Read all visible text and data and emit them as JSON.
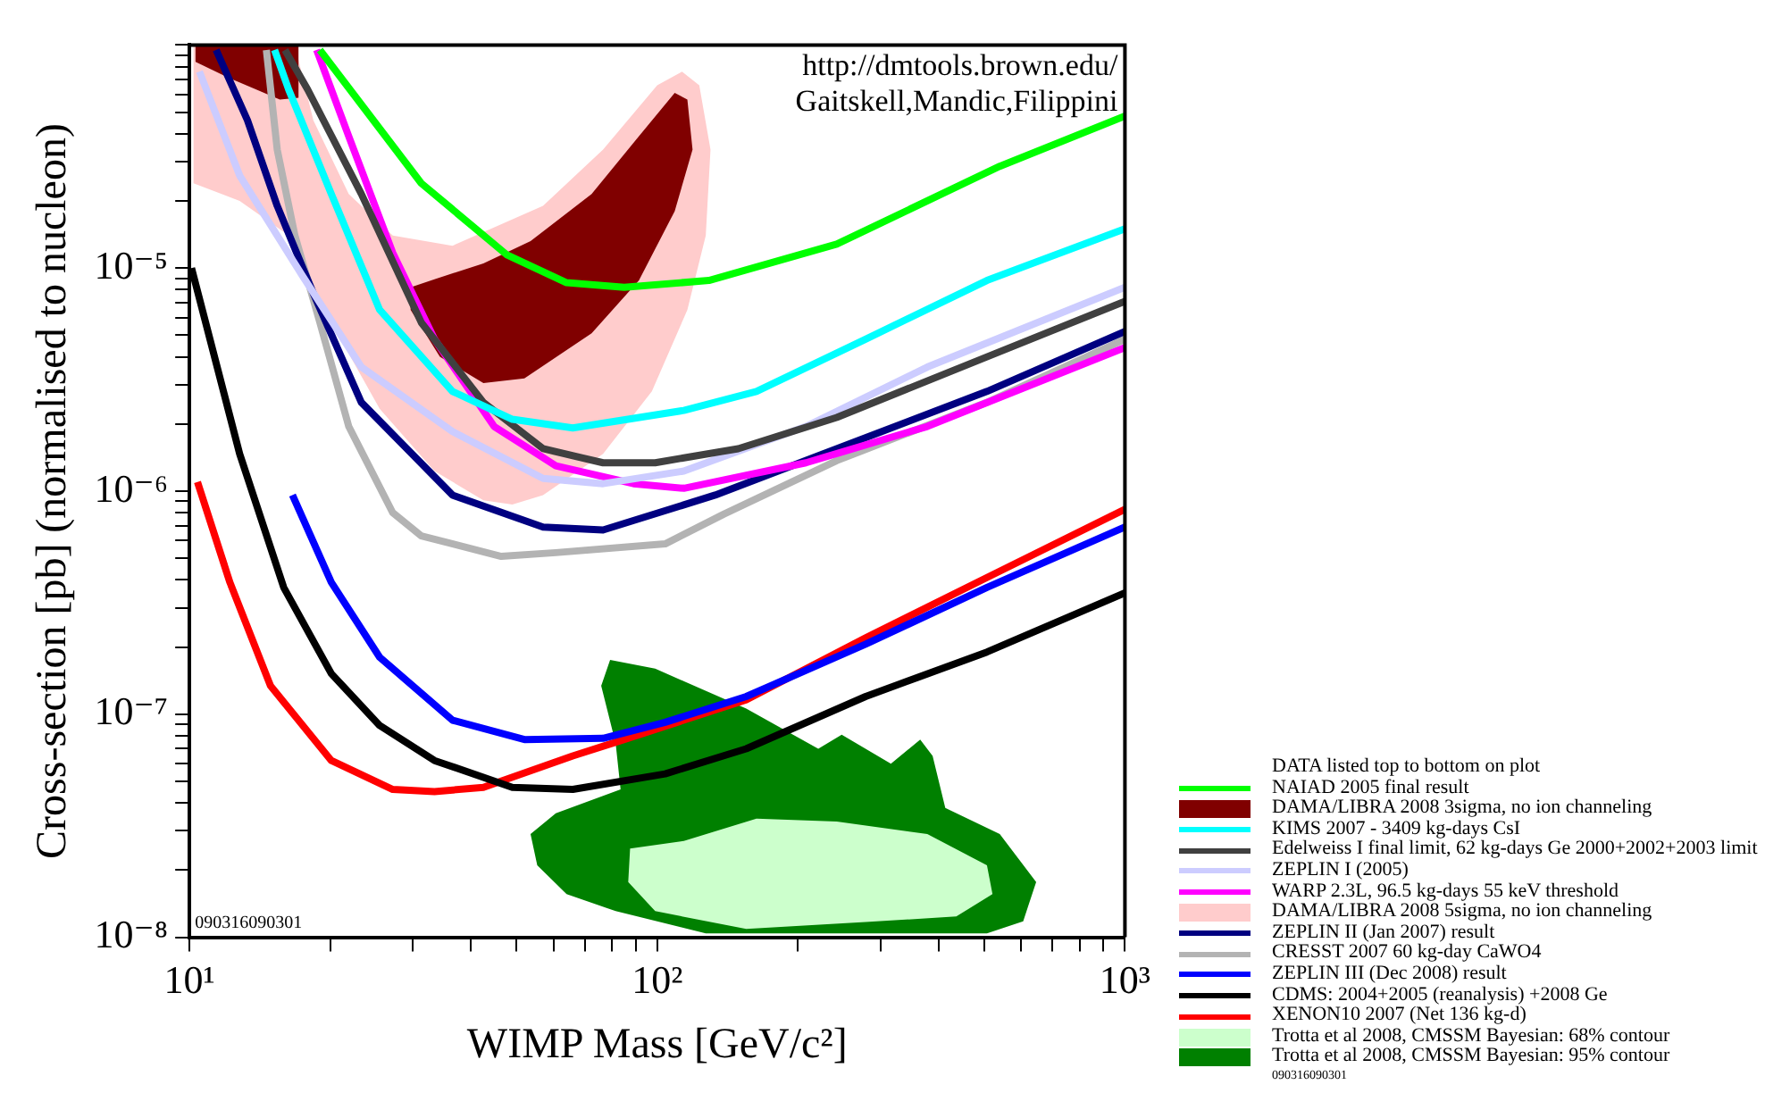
{
  "chart_data": {
    "type": "line",
    "xlabel": "WIMP Mass [GeV/c²]",
    "ylabel": "Cross-section [pb] (normalised to nucleon)",
    "legend_title": "DATA listed top to bottom on plot",
    "log": "xy",
    "grid": false,
    "legend": "bottom right",
    "marker": "none",
    "line_style": "solid",
    "xlim": [
      10,
      1000
    ],
    "ylim": [
      1e-08,
      0.0001
    ],
    "xticks": [
      {
        "value": 10,
        "label": "10¹"
      },
      {
        "value": 20,
        "label": null
      },
      {
        "value": 30,
        "label": null
      },
      {
        "value": 40,
        "label": null
      },
      {
        "value": 50,
        "label": null
      },
      {
        "value": 60,
        "label": null
      },
      {
        "value": 70,
        "label": null
      },
      {
        "value": 80,
        "label": null
      },
      {
        "value": 90,
        "label": null
      },
      {
        "value": 100,
        "label": "10²"
      },
      {
        "value": 200,
        "label": null
      },
      {
        "value": 300,
        "label": null
      },
      {
        "value": 400,
        "label": null
      },
      {
        "value": 500,
        "label": null
      },
      {
        "value": 600,
        "label": null
      },
      {
        "value": 700,
        "label": null
      },
      {
        "value": 800,
        "label": null
      },
      {
        "value": 900,
        "label": null
      },
      {
        "value": 1000,
        "label": "10³"
      }
    ],
    "yticks": [
      {
        "value": 1e-08,
        "label": "10⁻⁸"
      },
      {
        "value": 2e-08,
        "label": null
      },
      {
        "value": 3e-08,
        "label": null
      },
      {
        "value": 4e-08,
        "label": null
      },
      {
        "value": 5e-08,
        "label": null
      },
      {
        "value": 6e-08,
        "label": null
      },
      {
        "value": 7e-08,
        "label": null
      },
      {
        "value": 8e-08,
        "label": null
      },
      {
        "value": 9e-08,
        "label": null
      },
      {
        "value": 1e-07,
        "label": "10⁻⁷"
      },
      {
        "value": 2e-07,
        "label": null
      },
      {
        "value": 3e-07,
        "label": null
      },
      {
        "value": 4e-07,
        "label": null
      },
      {
        "value": 5e-07,
        "label": null
      },
      {
        "value": 6e-07,
        "label": null
      },
      {
        "value": 7e-07,
        "label": null
      },
      {
        "value": 8e-07,
        "label": null
      },
      {
        "value": 9e-07,
        "label": null
      },
      {
        "value": 1e-06,
        "label": "10⁻⁶"
      },
      {
        "value": 2e-06,
        "label": null
      },
      {
        "value": 3e-06,
        "label": null
      },
      {
        "value": 4e-06,
        "label": null
      },
      {
        "value": 5e-06,
        "label": null
      },
      {
        "value": 6e-06,
        "label": null
      },
      {
        "value": 7e-06,
        "label": null
      },
      {
        "value": 8e-06,
        "label": null
      },
      {
        "value": 9e-06,
        "label": null
      },
      {
        "value": 1e-05,
        "label": "10⁻⁵"
      },
      {
        "value": 2e-05,
        "label": null
      },
      {
        "value": 3e-05,
        "label": null
      },
      {
        "value": 4e-05,
        "label": null
      },
      {
        "value": 5e-05,
        "label": null
      },
      {
        "value": 6e-05,
        "label": null
      },
      {
        "value": 7e-05,
        "label": null
      },
      {
        "value": 8e-05,
        "label": null
      },
      {
        "value": 9e-05,
        "label": null
      },
      {
        "value": 0.0001,
        "label": null
      }
    ],
    "annotations": [
      "http://dmtools.brown.edu/",
      "Gaitskell,Mandic,Filippini",
      "090316090301",
      "090316090301"
    ],
    "series": [
      {
        "name": "NAIAD 2005 final result",
        "color": "#00ff00",
        "x": [
          19,
          31.3,
          47.6,
          64,
          85,
          129,
          242,
          540,
          1000
        ],
        "values": [
          9.5e-05,
          2.4e-05,
          1.15e-05,
          8.6e-06,
          8.2e-06,
          8.8e-06,
          1.28e-05,
          2.86e-05,
          4.8e-05
        ]
      },
      {
        "name": "DAMA/LIBRA 2008 3sigma, no ion channeling",
        "color": "#800000",
        "type": "area",
        "x": [
          29.7,
          33.4,
          42.5,
          53.6,
          72.4,
          91.4,
          109,
          116,
          119,
          109,
          91.4,
          72.4,
          52,
          42.5,
          34.3,
          29.7,
          29.7
        ],
        "values": [
          8.2e-06,
          8.9e-06,
          1.05e-05,
          1.32e-05,
          2.15e-05,
          3.9e-05,
          6.1e-05,
          5.7e-05,
          3.4e-05,
          1.8e-05,
          8.8e-06,
          5.1e-06,
          3.2e-06,
          3.05e-06,
          4e-06,
          6.5e-06,
          8.2e-06
        ]
      },
      {
        "color": "#800000",
        "type": "area",
        "x": [
          10.3,
          10.3,
          12,
          15.6,
          17.1,
          17.1,
          10.3
        ],
        "values": [
          0.0001,
          8.4e-05,
          7.2e-05,
          5.7e-05,
          5.8e-05,
          0.0001,
          0.0001
        ]
      },
      {
        "name": "KIMS 2007 - 3409 kg-days CsI",
        "color": "#00ffff",
        "x": [
          15.2,
          16.3,
          20.1,
          25.5,
          36.5,
          49,
          66,
          114,
          163,
          279,
          507,
          1000
        ],
        "values": [
          9.5e-05,
          6.3e-05,
          2.15e-05,
          6.5e-06,
          2.8e-06,
          2.1e-06,
          1.92e-06,
          2.3e-06,
          2.8e-06,
          4.8e-06,
          8.8e-06,
          1.5e-05
        ]
      },
      {
        "name": "Edelweiss I final limit, 62 kg-days Ge 2000+2002+2003 limit",
        "color": "#404040",
        "x": [
          16,
          17.9,
          23.3,
          31.3,
          42.5,
          57,
          76.6,
          99,
          149,
          242,
          507,
          1000
        ],
        "values": [
          9.5e-05,
          6.3e-05,
          2.15e-05,
          5.7e-06,
          2.5e-06,
          1.55e-06,
          1.34e-06,
          1.34e-06,
          1.55e-06,
          2.14e-06,
          4e-06,
          7.1e-06
        ]
      },
      {
        "name": "ZEPLIN I (2005)",
        "color": "#ccccff",
        "x": [
          10.5,
          12.8,
          17.4,
          23.3,
          36.5,
          57,
          76.6,
          114,
          208,
          378,
          1000
        ],
        "values": [
          7.6e-05,
          2.6e-05,
          9.3e-06,
          3.6e-06,
          1.85e-06,
          1.14e-06,
          1.08e-06,
          1.23e-06,
          1.95e-06,
          3.6e-06,
          8.2e-06
        ]
      },
      {
        "name": "WARP 2.3L, 96.5 kg-days 55 keV threshold",
        "color": "#ff00ff",
        "x": [
          18.7,
          21.9,
          27.2,
          33.4,
          44.8,
          60.7,
          89,
          114,
          208,
          378,
          1000
        ],
        "values": [
          9.5e-05,
          3.9e-05,
          1.17e-05,
          4.8e-06,
          1.95e-06,
          1.3e-06,
          1.08e-06,
          1.03e-06,
          1.34e-06,
          1.95e-06,
          4.4e-06
        ]
      },
      {
        "name": "DAMA/LIBRA 2008 5sigma, no ion channeling",
        "color": "#ffcccc",
        "type": "area",
        "x": [
          10.2,
          10.2,
          12.8,
          16.3,
          20.1,
          25.5,
          33.4,
          42.5,
          49,
          57,
          76.6,
          97.4,
          116,
          127,
          130,
          123,
          113,
          100,
          76.6,
          57,
          36.5,
          27.2,
          21.9,
          18.4,
          16.8,
          10.2
        ],
        "values": [
          0.0001,
          2.4e-05,
          2e-05,
          1.4e-05,
          5.7e-06,
          2.34e-06,
          1.23e-06,
          9.1e-07,
          8.7e-07,
          9.6e-07,
          1.47e-06,
          2.8e-06,
          6.5e-06,
          1.4e-05,
          3.4e-05,
          6.6e-05,
          7.6e-05,
          6.6e-05,
          3.4e-05,
          1.9e-05,
          1.26e-05,
          1.4e-05,
          2.15e-05,
          4.6e-05,
          0.0001,
          0.0001
        ]
      },
      {
        "name": "ZEPLIN II (Jan 2007) result",
        "color": "#000080",
        "x": [
          11.4,
          13.3,
          15.4,
          18.4,
          23.3,
          36.5,
          57,
          76.6,
          133,
          242,
          507,
          1000
        ],
        "values": [
          9.5e-05,
          4.6e-05,
          1.9e-05,
          7.7e-06,
          2.5e-06,
          9.6e-07,
          6.9e-07,
          6.7e-07,
          9.6e-07,
          1.55e-06,
          2.8e-06,
          5.2e-06
        ]
      },
      {
        "name": "CRESST 2007 60 kg-day CaWO4",
        "color": "#b3b3b3",
        "x": [
          14.6,
          15.4,
          16.8,
          19,
          21.9,
          27.2,
          31.3,
          46.4,
          60.7,
          104,
          139,
          242,
          507,
          1000
        ],
        "values": [
          9.5e-05,
          3.4e-05,
          1.4e-05,
          5.7e-06,
          1.95e-06,
          8e-07,
          6.3e-07,
          5.1e-07,
          5.3e-07,
          5.8e-07,
          7.9e-07,
          1.37e-06,
          2.5e-06,
          4.8e-06
        ]
      },
      {
        "name": "ZEPLIN III (Dec 2008) result",
        "color": "#0000ff",
        "x": [
          16.6,
          20.1,
          25.5,
          36.5,
          52,
          76.6,
          104,
          155,
          279,
          507,
          1000
        ],
        "values": [
          9.6e-07,
          3.9e-07,
          1.8e-07,
          9.4e-08,
          7.7e-08,
          7.8e-08,
          9.2e-08,
          1.2e-07,
          2.06e-07,
          3.7e-07,
          6.9e-07
        ]
      },
      {
        "name": "CDMS: 2004+2005 (reanalysis) +2008 Ge",
        "color": "#000000",
        "x": [
          10.1,
          12.8,
          14.9,
          15.9,
          20.1,
          25.5,
          33.4,
          49,
          66,
          104,
          155,
          279,
          507,
          1000
        ],
        "values": [
          1e-05,
          1.47e-06,
          5.6e-07,
          3.7e-07,
          1.52e-07,
          8.9e-08,
          6.2e-08,
          4.7e-08,
          4.6e-08,
          5.4e-08,
          7e-08,
          1.2e-07,
          1.9e-07,
          3.5e-07
        ]
      },
      {
        "name": "XENON10 2007 (Net 136 kg-d)",
        "color": "#ff0000",
        "x": [
          10.4,
          12.2,
          14.9,
          20.1,
          27.2,
          33.4,
          42.5,
          66,
          85,
          155,
          279,
          507,
          1000
        ],
        "values": [
          1.1e-06,
          3.9e-07,
          1.34e-07,
          6.2e-08,
          4.6e-08,
          4.5e-08,
          4.7e-08,
          6.5e-08,
          7.7e-08,
          1.16e-07,
          2.2e-07,
          4.1e-07,
          8.3e-07
        ]
      },
      {
        "name": "Trotta et al 2008, CMSSM Bayesian: 68% contour",
        "color": "#ccffcc",
        "type": "area",
        "x": [
          87.5,
          114,
          163,
          242,
          378,
          507,
          521,
          436,
          279,
          155,
          99,
          86.7,
          87.5
        ],
        "values": [
          2.5e-08,
          2.7e-08,
          3.4e-08,
          3.3e-08,
          2.9e-08,
          2.1e-08,
          1.56e-08,
          1.24e-08,
          1.17e-08,
          1.09e-08,
          1.31e-08,
          1.77e-08,
          2.5e-08
        ]
      },
      {
        "name": "Trotta et al 2008, CMSSM Bayesian: 95% contour",
        "color": "#008000",
        "type": "area",
        "x": [
          75.9,
          79.3,
          99,
          155,
          221,
          248,
          316,
          365,
          388,
          413,
          540,
          646,
          606,
          507,
          127,
          81.5,
          64,
          55.4,
          53.6,
          60.7,
          83.5,
          81.5,
          75.9
        ],
        "values": [
          1.34e-07,
          1.75e-07,
          1.6e-07,
          1.06e-07,
          7e-08,
          8.1e-08,
          6e-08,
          7.7e-08,
          6.5e-08,
          3.8e-08,
          2.9e-08,
          1.77e-08,
          1.18e-08,
          1.04e-08,
          1.04e-08,
          1.31e-08,
          1.56e-08,
          2.1e-08,
          2.9e-08,
          3.6e-08,
          4.6e-08,
          7.4e-08,
          1.34e-07
        ]
      }
    ]
  }
}
